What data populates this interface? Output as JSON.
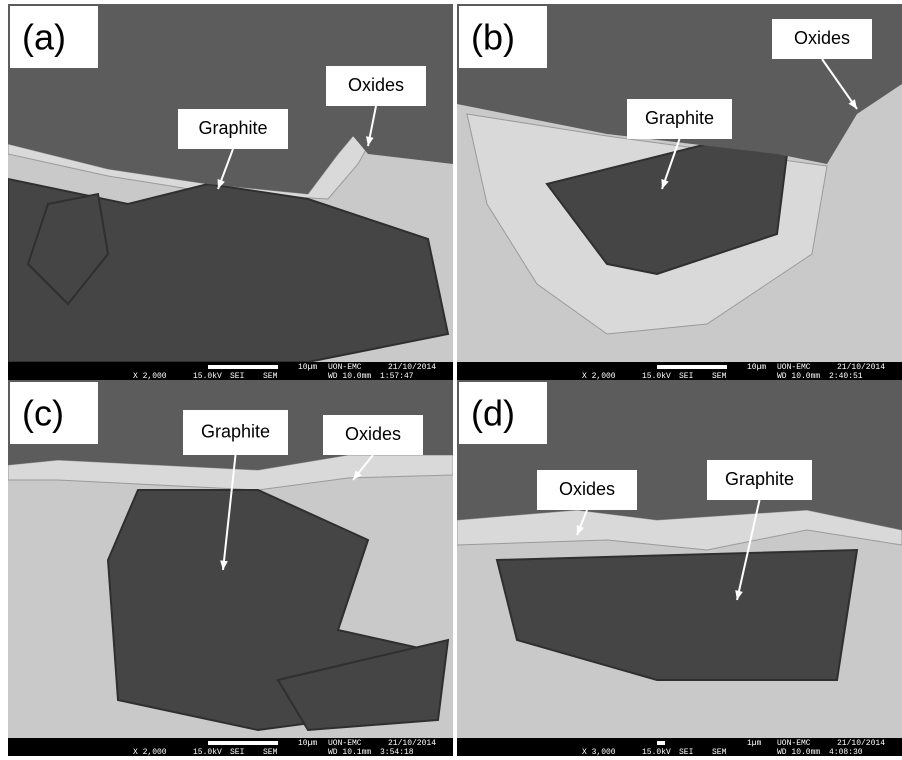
{
  "panels": [
    {
      "label": "(a)",
      "annotations": [
        {
          "text": "Graphite"
        },
        {
          "text": "Oxides"
        }
      ],
      "info_bar": {
        "scale": "10µm",
        "lab": "UON-EMC",
        "date": "21/10/2014",
        "magnification": "X 2,000",
        "voltage": "15.0kV",
        "mode": "SEI",
        "instrument": "SEM",
        "working_distance": "WD 10.0mm",
        "time": "1:57:47"
      }
    },
    {
      "label": "(b)",
      "annotations": [
        {
          "text": "Graphite"
        },
        {
          "text": "Oxides"
        }
      ],
      "info_bar": {
        "scale": "10µm",
        "lab": "UON-EMC",
        "date": "21/10/2014",
        "magnification": "X 2,000",
        "voltage": "15.0kV",
        "mode": "SEI",
        "instrument": "SEM",
        "working_distance": "WD 10.0mm",
        "time": "2:40:51"
      }
    },
    {
      "label": "(c)",
      "annotations": [
        {
          "text": "Graphite"
        },
        {
          "text": "Oxides"
        }
      ],
      "info_bar": {
        "scale": "10µm",
        "lab": "UON-EMC",
        "date": "21/10/2014",
        "magnification": "X 2,000",
        "voltage": "15.0kV",
        "mode": "SEI",
        "instrument": "SEM",
        "working_distance": "WD 10.1mm",
        "time": "3:54:18"
      }
    },
    {
      "label": "(d)",
      "annotations": [
        {
          "text": "Oxides"
        },
        {
          "text": "Graphite"
        }
      ],
      "info_bar": {
        "scale": "1µm",
        "lab": "UON-EMC",
        "date": "21/10/2014",
        "magnification": "X 3,000",
        "voltage": "15.0kV",
        "mode": "SEI",
        "instrument": "SEM",
        "working_distance": "WD 10.0mm",
        "time": "4:08:30"
      }
    }
  ]
}
